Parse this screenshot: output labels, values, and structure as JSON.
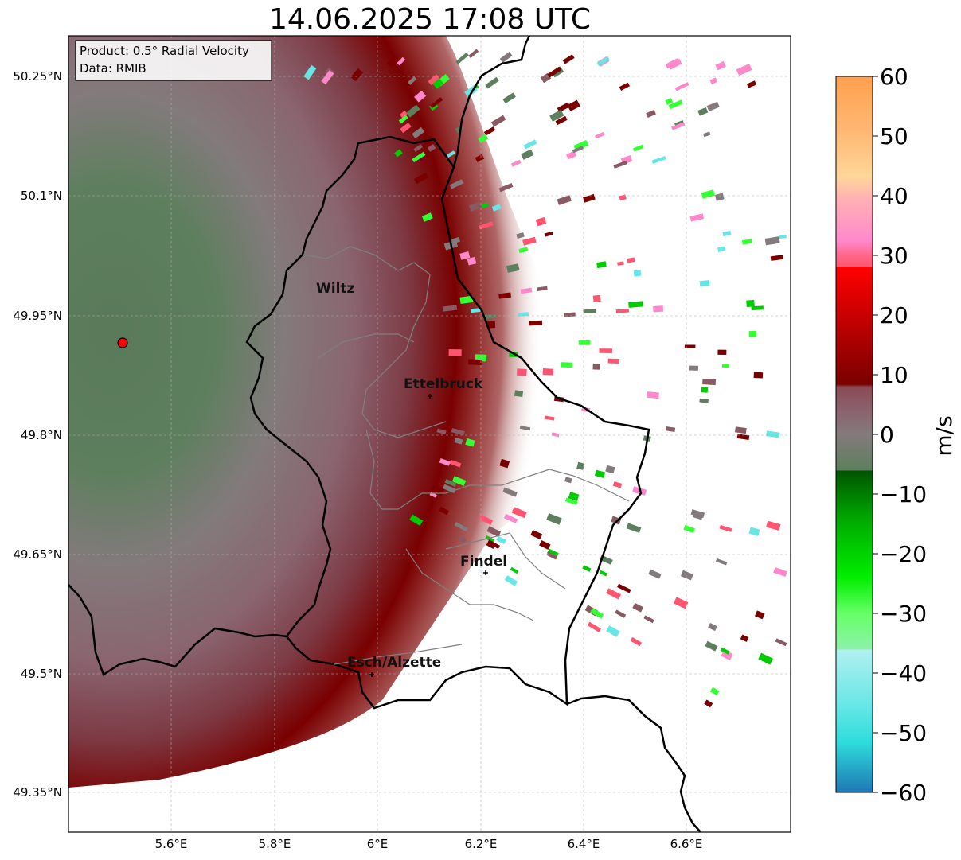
{
  "title": "14.06.2025 17:08 UTC",
  "info_box": {
    "line1": "Product: 0.5° Radial Velocity",
    "line2": "Data: RMIB"
  },
  "lat_ticks": [
    "50.25°N",
    "50.1°N",
    "49.95°N",
    "49.8°N",
    "49.65°N",
    "49.5°N",
    "49.35°N"
  ],
  "lon_ticks": [
    "5.6°E",
    "5.8°E",
    "6°E",
    "6.2°E",
    "6.4°E",
    "6.6°E"
  ],
  "cities": [
    {
      "name": "Wiltz"
    },
    {
      "name": "Ettelbruck"
    },
    {
      "name": "Findel"
    },
    {
      "name": "Esch/Alzette"
    }
  ],
  "colorbar": {
    "label": "m/s",
    "ticks": [
      "60",
      "50",
      "40",
      "30",
      "20",
      "10",
      "0",
      "−10",
      "−20",
      "−30",
      "−40",
      "−50",
      "−60"
    ],
    "stops": [
      "#ffa04e",
      "#ffb976",
      "#ffd699",
      "#ffb2b2",
      "#ff88cc",
      "#ff5570",
      "#ff0000",
      "#cc0000",
      "#7a0000",
      "#8a5a64",
      "#837a7c",
      "#5d7f5d",
      "#006a00",
      "#00cc00",
      "#33ff33",
      "#8cf2aa",
      "#b2f0f0",
      "#66e6e6",
      "#2ddcdc",
      "#1f77b4"
    ]
  },
  "radar_site_color": "#ff0000"
}
